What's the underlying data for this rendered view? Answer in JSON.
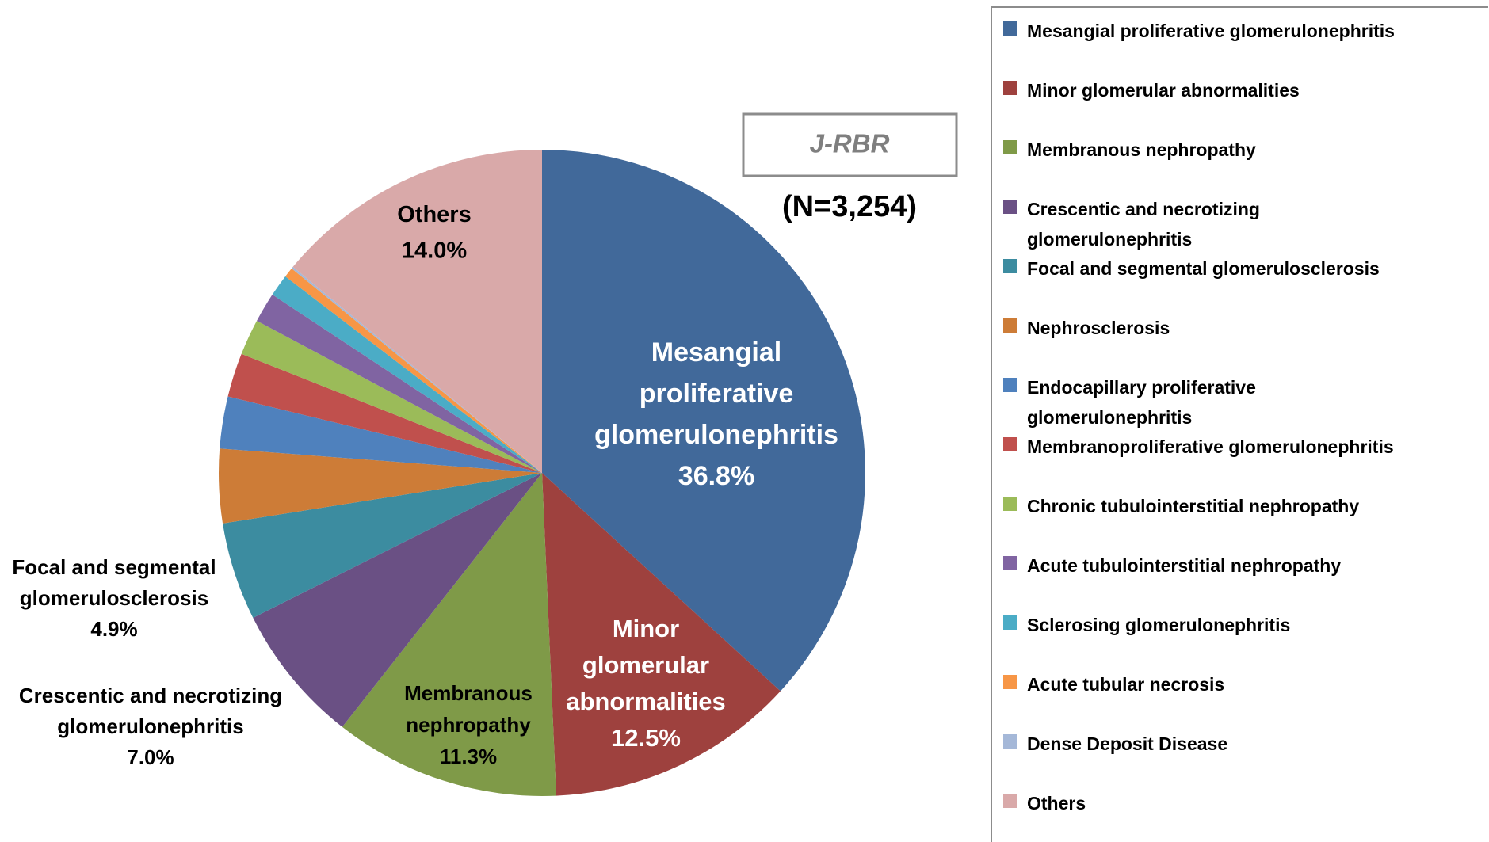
{
  "chart_data": {
    "type": "pie",
    "annotations": [
      "J-RBR",
      "(N=3,254)"
    ],
    "categories": [
      "Mesangial proliferative glomerulonephritis",
      "Minor glomerular abnormalities",
      "Membranous nephropathy",
      "Crescentic and necrotizing glomerulonephritis",
      "Focal and segmental glomerulosclerosis",
      "Nephrosclerosis",
      "Endocapillary proliferative glomerulonephritis",
      "Membranoproliferative glomerulonephritis",
      "Chronic tubulointerstitial nephropathy",
      "Acute tubulointerstitial nephropathy",
      "Sclerosing glomerulonephritis",
      "Acute tubular necrosis",
      "Dense Deposit Disease",
      "Others"
    ],
    "values": [
      36.8,
      12.5,
      11.3,
      7.0,
      4.9,
      3.7,
      2.6,
      2.2,
      1.8,
      1.5,
      1.1,
      0.5,
      0.1,
      14.0
    ],
    "value_labels": [
      "36.8%",
      "12.5%",
      "11.3%",
      "7.0%",
      "4.9%",
      null,
      null,
      null,
      null,
      null,
      null,
      null,
      null,
      "14.0%"
    ],
    "colors": [
      "#41699a",
      "#9e413e",
      "#7f9a48",
      "#6a5084",
      "#3c8ca0",
      "#cd7c37",
      "#4f81bd",
      "#c0504d",
      "#9bbb59",
      "#8064a2",
      "#4bacc6",
      "#f79646",
      "#a5b8d8",
      "#d9a9a9"
    ]
  }
}
